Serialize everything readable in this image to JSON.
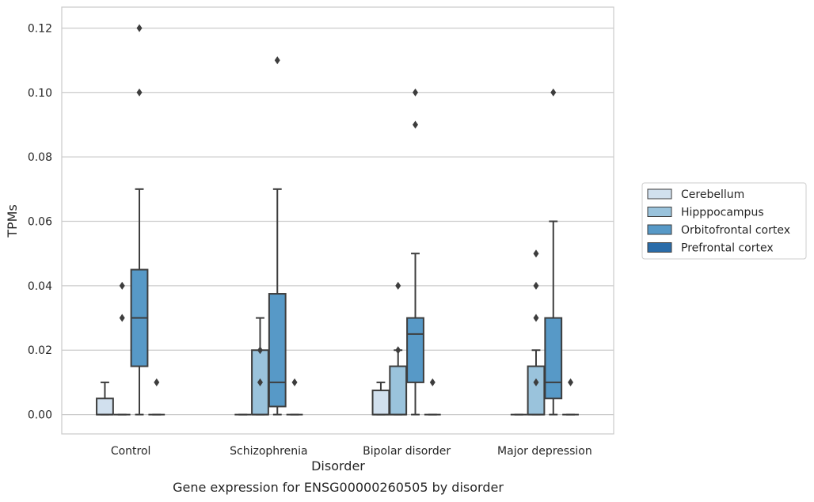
{
  "chart_data": {
    "type": "box",
    "title": "",
    "caption": "Gene expression for ENSG00000260505 by disorder",
    "xlabel": "Disorder",
    "ylabel": "TPMs",
    "ylim": [
      -0.006,
      0.1265
    ],
    "yticks": [
      "0.00",
      "0.02",
      "0.04",
      "0.06",
      "0.08",
      "0.10",
      "0.12"
    ],
    "grid": "horizontal",
    "legend_position": "right",
    "categories": [
      "Control",
      "Schizophrenia",
      "Bipolar disorder",
      "Major depression"
    ],
    "series": [
      {
        "name": "Cerebellum",
        "color": "#d1e0ee",
        "boxes": [
          {
            "q1": 0.0,
            "median": 0.0,
            "q3": 0.005,
            "whisker_low": 0.0,
            "whisker_high": 0.01,
            "outliers": []
          },
          {
            "q1": 0.0,
            "median": 0.0,
            "q3": 0.0,
            "whisker_low": 0.0,
            "whisker_high": 0.0,
            "outliers": []
          },
          {
            "q1": 0.0,
            "median": 0.0,
            "q3": 0.0075,
            "whisker_low": 0.0,
            "whisker_high": 0.01,
            "outliers": []
          },
          {
            "q1": 0.0,
            "median": 0.0,
            "q3": 0.0,
            "whisker_low": 0.0,
            "whisker_high": 0.0,
            "outliers": []
          }
        ]
      },
      {
        "name": "Hipppocampus",
        "color": "#9ac3dc",
        "boxes": [
          {
            "q1": 0.0,
            "median": 0.0,
            "q3": 0.0,
            "whisker_low": 0.0,
            "whisker_high": 0.0,
            "outliers": [
              0.03,
              0.04
            ]
          },
          {
            "q1": 0.0,
            "median": 0.0,
            "q3": 0.02,
            "whisker_low": 0.0,
            "whisker_high": 0.03,
            "outliers": [
              0.01,
              0.02
            ]
          },
          {
            "q1": 0.0,
            "median": 0.0,
            "q3": 0.015,
            "whisker_low": 0.0,
            "whisker_high": 0.02,
            "outliers": [
              0.02,
              0.04
            ]
          },
          {
            "q1": 0.0,
            "median": 0.0,
            "q3": 0.015,
            "whisker_low": 0.0,
            "whisker_high": 0.02,
            "outliers": [
              0.01,
              0.03,
              0.04,
              0.05
            ]
          }
        ]
      },
      {
        "name": "Orbitofrontal cortex",
        "color": "#5799c7",
        "boxes": [
          {
            "q1": 0.015,
            "median": 0.03,
            "q3": 0.045,
            "whisker_low": 0.0,
            "whisker_high": 0.07,
            "outliers": [
              0.1,
              0.12
            ]
          },
          {
            "q1": 0.0025,
            "median": 0.01,
            "q3": 0.0375,
            "whisker_low": 0.0,
            "whisker_high": 0.07,
            "outliers": [
              0.11
            ]
          },
          {
            "q1": 0.01,
            "median": 0.025,
            "q3": 0.03,
            "whisker_low": 0.0,
            "whisker_high": 0.05,
            "outliers": [
              0.09,
              0.1
            ]
          },
          {
            "q1": 0.005,
            "median": 0.01,
            "q3": 0.03,
            "whisker_low": 0.0,
            "whisker_high": 0.06,
            "outliers": [
              0.1
            ]
          }
        ]
      },
      {
        "name": "Prefrontal cortex",
        "color": "#2a6ca9",
        "boxes": [
          {
            "q1": 0.0,
            "median": 0.0,
            "q3": 0.0,
            "whisker_low": 0.0,
            "whisker_high": 0.0,
            "outliers": [
              0.01
            ]
          },
          {
            "q1": 0.0,
            "median": 0.0,
            "q3": 0.0,
            "whisker_low": 0.0,
            "whisker_high": 0.0,
            "outliers": [
              0.01
            ]
          },
          {
            "q1": 0.0,
            "median": 0.0,
            "q3": 0.0,
            "whisker_low": 0.0,
            "whisker_high": 0.0,
            "outliers": [
              0.01
            ]
          },
          {
            "q1": 0.0,
            "median": 0.0,
            "q3": 0.0,
            "whisker_low": 0.0,
            "whisker_high": 0.0,
            "outliers": [
              0.01
            ]
          }
        ]
      }
    ]
  }
}
